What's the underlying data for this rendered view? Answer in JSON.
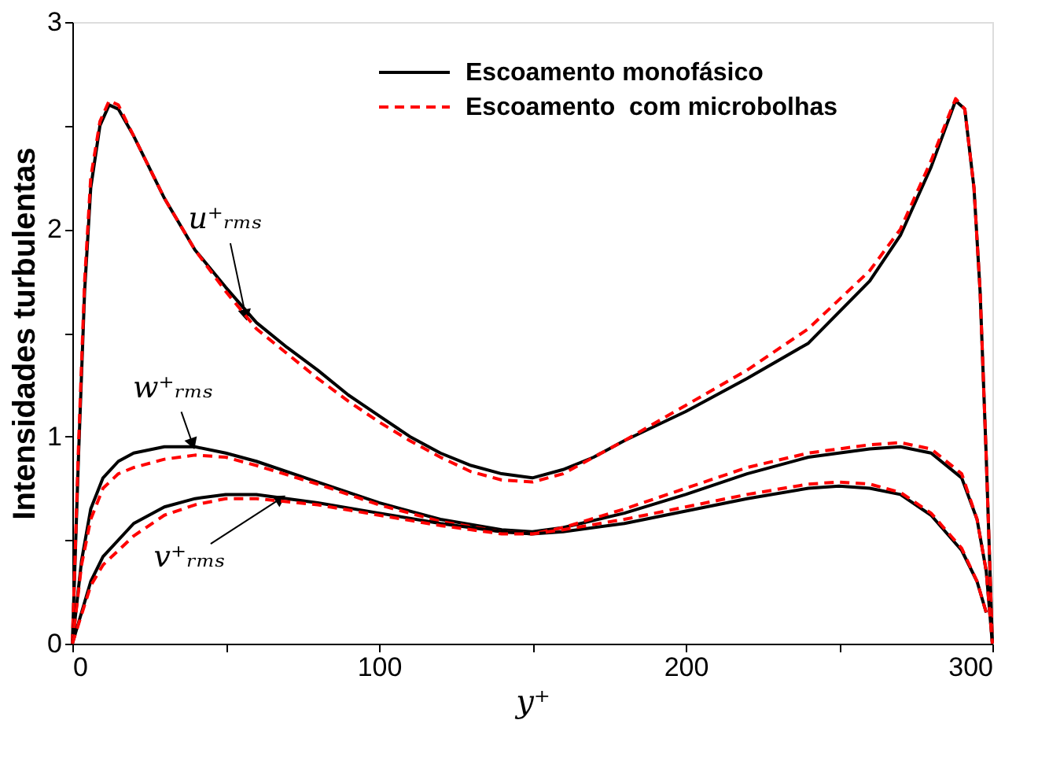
{
  "chart_data": {
    "type": "line",
    "xlabel": "y⁺",
    "ylabel": "Intensidades turbulentas",
    "xlim": [
      0,
      300
    ],
    "ylim": [
      0,
      3
    ],
    "xticks": [
      0,
      {
        "value": 50,
        "label": null
      },
      100,
      {
        "value": 150,
        "label": null
      },
      200,
      {
        "value": 250,
        "label": null
      },
      300
    ],
    "yticks": [
      0,
      {
        "value": 0.5,
        "label": null
      },
      1,
      {
        "value": 1.5,
        "label": null
      },
      2,
      {
        "value": 2.5,
        "label": null
      },
      3
    ],
    "grid": false,
    "legend": "top right",
    "marker": "none",
    "series": [
      {
        "name": "Escoamento monofásico",
        "color": "#000000",
        "line_style": "solid",
        "x": [
          0,
          2,
          4,
          6,
          9,
          12,
          15,
          20,
          30,
          40,
          50,
          60,
          70,
          80,
          90,
          100,
          110,
          120,
          130,
          140,
          150,
          160,
          170,
          180,
          200,
          220,
          240,
          260,
          270,
          280,
          285,
          288,
          291,
          294,
          296,
          298,
          300
        ],
        "values": [
          0,
          0.9,
          1.7,
          2.2,
          2.5,
          2.6,
          2.58,
          2.45,
          2.15,
          1.9,
          1.72,
          1.55,
          1.43,
          1.32,
          1.2,
          1.1,
          1.0,
          0.92,
          0.86,
          0.82,
          0.8,
          0.84,
          0.9,
          0.98,
          1.12,
          1.28,
          1.45,
          1.75,
          1.97,
          2.3,
          2.5,
          2.62,
          2.58,
          2.2,
          1.7,
          0.9,
          0
        ]
      },
      {
        "name": "Escoamento  com microbolhas",
        "color": "#ff0000",
        "line_style": "dashed",
        "x": [
          0,
          2,
          4,
          6,
          9,
          12,
          15,
          20,
          30,
          40,
          50,
          60,
          70,
          80,
          90,
          100,
          110,
          120,
          130,
          140,
          150,
          160,
          170,
          180,
          200,
          220,
          240,
          260,
          270,
          280,
          285,
          288,
          291,
          294,
          296,
          298,
          300
        ],
        "values": [
          0,
          0.95,
          1.75,
          2.25,
          2.52,
          2.62,
          2.6,
          2.45,
          2.15,
          1.9,
          1.7,
          1.52,
          1.4,
          1.28,
          1.17,
          1.07,
          0.98,
          0.9,
          0.83,
          0.79,
          0.78,
          0.82,
          0.9,
          0.98,
          1.15,
          1.32,
          1.52,
          1.8,
          2.0,
          2.33,
          2.52,
          2.63,
          2.58,
          2.2,
          1.7,
          0.9,
          0
        ]
      },
      {
        "color": "#000000",
        "line_style": "solid",
        "x": [
          0,
          3,
          6,
          10,
          15,
          20,
          30,
          40,
          50,
          60,
          80,
          100,
          120,
          140,
          150,
          160,
          180,
          200,
          220,
          240,
          260,
          270,
          280,
          290,
          295,
          298,
          300
        ],
        "values": [
          0,
          0.4,
          0.65,
          0.8,
          0.88,
          0.92,
          0.95,
          0.95,
          0.92,
          0.88,
          0.78,
          0.68,
          0.6,
          0.55,
          0.54,
          0.56,
          0.63,
          0.72,
          0.82,
          0.9,
          0.94,
          0.95,
          0.92,
          0.8,
          0.6,
          0.35,
          0
        ]
      },
      {
        "color": "#ff0000",
        "line_style": "dashed",
        "x": [
          0,
          3,
          6,
          10,
          15,
          20,
          30,
          40,
          50,
          60,
          80,
          100,
          120,
          140,
          150,
          160,
          180,
          200,
          220,
          240,
          260,
          270,
          280,
          290,
          295,
          298,
          300
        ],
        "values": [
          0,
          0.38,
          0.6,
          0.75,
          0.82,
          0.85,
          0.89,
          0.91,
          0.9,
          0.86,
          0.77,
          0.67,
          0.59,
          0.54,
          0.53,
          0.56,
          0.65,
          0.75,
          0.85,
          0.92,
          0.96,
          0.97,
          0.94,
          0.82,
          0.6,
          0.35,
          0
        ]
      },
      {
        "color": "#000000",
        "line_style": "solid",
        "x": [
          0,
          3,
          6,
          10,
          20,
          30,
          40,
          50,
          60,
          80,
          100,
          120,
          140,
          150,
          160,
          180,
          200,
          220,
          240,
          250,
          260,
          270,
          280,
          290,
          295,
          298
        ],
        "values": [
          0,
          0.15,
          0.3,
          0.42,
          0.58,
          0.66,
          0.7,
          0.72,
          0.72,
          0.68,
          0.63,
          0.58,
          0.54,
          0.53,
          0.54,
          0.58,
          0.64,
          0.7,
          0.75,
          0.76,
          0.75,
          0.72,
          0.62,
          0.45,
          0.3,
          0.15
        ]
      },
      {
        "color": "#ff0000",
        "line_style": "dashed",
        "x": [
          0,
          3,
          6,
          10,
          20,
          30,
          40,
          50,
          60,
          80,
          100,
          120,
          140,
          150,
          160,
          180,
          200,
          220,
          240,
          250,
          260,
          270,
          280,
          290,
          295,
          298
        ],
        "values": [
          0,
          0.14,
          0.28,
          0.38,
          0.52,
          0.62,
          0.67,
          0.7,
          0.7,
          0.67,
          0.62,
          0.57,
          0.53,
          0.53,
          0.55,
          0.6,
          0.66,
          0.72,
          0.77,
          0.78,
          0.77,
          0.73,
          0.63,
          0.46,
          0.3,
          0.15
        ]
      }
    ],
    "annotations": [
      {
        "text": "u⁺ᵣₘₛ",
        "x": 57,
        "y": 1.55
      },
      {
        "text": "w⁺ᵣₘₛ",
        "x": 40,
        "y": 0.93
      },
      {
        "text": "v⁺ᵣₘₛ",
        "x": 70,
        "y": 0.72
      }
    ]
  }
}
